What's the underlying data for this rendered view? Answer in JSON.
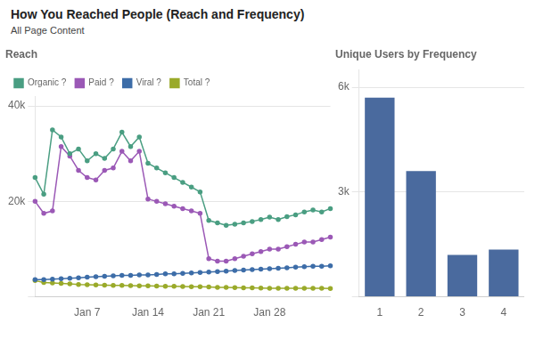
{
  "title": "How You Reached People (Reach and Frequency)",
  "chart_data": [
    {
      "type": "line",
      "title": "Reach",
      "annotations": [
        "All Page Content"
      ],
      "categories": [
        null,
        null,
        null,
        null,
        null,
        null,
        "Jan 7",
        null,
        null,
        null,
        null,
        null,
        null,
        "Jan 14",
        null,
        null,
        null,
        null,
        null,
        null,
        "Jan 21",
        null,
        null,
        null,
        null,
        null,
        null,
        "Jan 28",
        null,
        null,
        null,
        null,
        null,
        null,
        null
      ],
      "series": [
        {
          "name": "Organic ?",
          "color": "#4a9e82",
          "marker": "circle",
          "values": [
            25000,
            21500,
            35000,
            33500,
            30000,
            31000,
            28500,
            30000,
            29000,
            31000,
            34500,
            31500,
            33500,
            28000,
            27000,
            26000,
            25000,
            24000,
            23000,
            22000,
            16000,
            15500,
            15000,
            15200,
            15500,
            15800,
            16200,
            16700,
            16200,
            16800,
            17200,
            17800,
            18200,
            17800,
            18500
          ]
        },
        {
          "name": "Paid ?",
          "color": "#9b59b6",
          "marker": "circle",
          "values": [
            20000,
            17500,
            18000,
            31500,
            29500,
            26500,
            25000,
            24500,
            26500,
            27000,
            30500,
            28500,
            30500,
            20500,
            20000,
            19500,
            19000,
            18500,
            18000,
            17500,
            8000,
            7500,
            7500,
            8000,
            8500,
            9000,
            9500,
            10000,
            10000,
            10500,
            11000,
            11500,
            11500,
            12000,
            12500
          ]
        },
        {
          "name": "Viral ?",
          "color": "#3d6da8",
          "marker": "circle",
          "values": [
            3600,
            3600,
            3700,
            3800,
            3900,
            4000,
            4100,
            4200,
            4300,
            4400,
            4500,
            4500,
            4600,
            4600,
            4700,
            4800,
            4800,
            4900,
            5000,
            5100,
            5200,
            5300,
            5400,
            5500,
            5600,
            5700,
            5800,
            5900,
            6000,
            6100,
            6200,
            6300,
            6400,
            6400,
            6500
          ]
        },
        {
          "name": "Total ?",
          "color": "#9aaa2a",
          "marker": "circle",
          "values": [
            3400,
            3000,
            2900,
            2800,
            2700,
            2600,
            2550,
            2500,
            2450,
            2400,
            2400,
            2350,
            2300,
            2300,
            2250,
            2200,
            2200,
            2150,
            2100,
            2100,
            2050,
            2000,
            2000,
            1950,
            1900,
            1900,
            1850,
            1800,
            1800,
            1800,
            1800,
            1800,
            1780,
            1770,
            1760
          ]
        }
      ],
      "ylim": [
        0,
        42000
      ],
      "yticks": [
        {
          "value": 0,
          "label": ""
        },
        {
          "value": 20000,
          "label": "20k"
        },
        {
          "value": 40000,
          "label": "40k"
        }
      ],
      "grid": true,
      "legend": "top"
    },
    {
      "type": "bar",
      "title": "Unique Users by Frequency",
      "categories": [
        "1",
        "2",
        "3",
        "4"
      ],
      "values": [
        5700,
        3600,
        1200,
        1350
      ],
      "color": "#4a6a9e",
      "ylim": [
        0,
        6500
      ],
      "yticks": [
        {
          "value": 0,
          "label": ""
        },
        {
          "value": 3000,
          "label": "3k"
        },
        {
          "value": 6000,
          "label": "6k"
        }
      ],
      "grid": true
    }
  ]
}
